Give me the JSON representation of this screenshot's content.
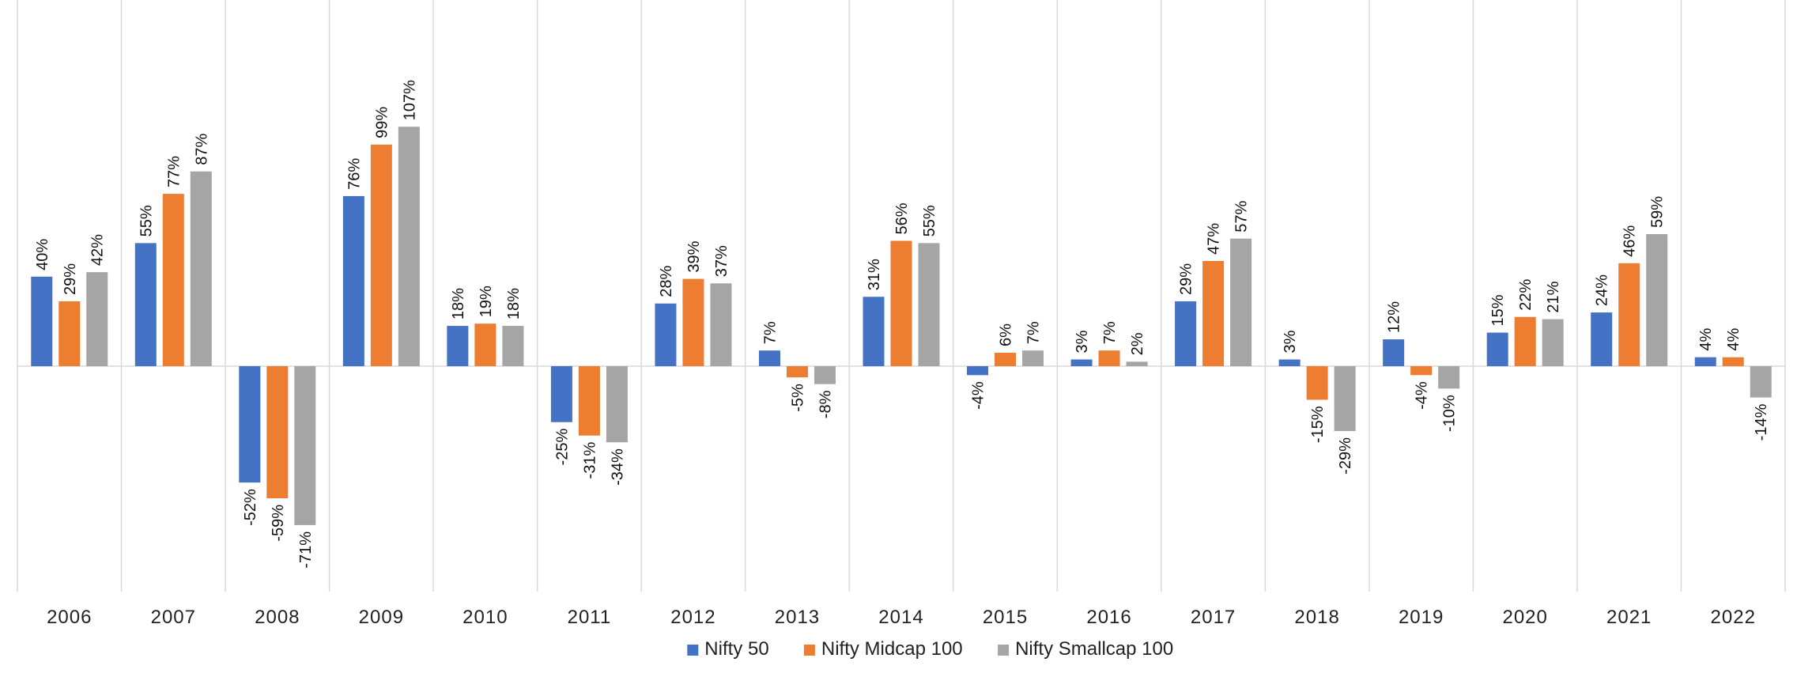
{
  "chart_data": {
    "type": "bar",
    "title": "",
    "xlabel": "",
    "ylabel": "",
    "ylim": [
      -75,
      110
    ],
    "grid": "vertical separators between categories",
    "legend_position": "bottom",
    "categories": [
      "2006",
      "2007",
      "2008",
      "2009",
      "2010",
      "2011",
      "2012",
      "2013",
      "2014",
      "2015",
      "2016",
      "2017",
      "2018",
      "2019",
      "2020",
      "2021",
      "2022"
    ],
    "series": [
      {
        "name": "Nifty 50",
        "color": "#4472C4",
        "values": [
          40,
          55,
          -52,
          76,
          18,
          -25,
          28,
          7,
          31,
          -4,
          3,
          29,
          3,
          12,
          15,
          24,
          4
        ],
        "labels": [
          "40%",
          "55%",
          "-52%",
          "76%",
          "18%",
          "-25%",
          "28%",
          "7%",
          "31%",
          "-4%",
          "3%",
          "29%",
          "3%",
          "12%",
          "15%",
          "24%",
          "4%"
        ]
      },
      {
        "name": "Nifty Midcap 100",
        "color": "#ED7D31",
        "values": [
          29,
          77,
          -59,
          99,
          19,
          -31,
          39,
          -5,
          56,
          6,
          7,
          47,
          -15,
          -4,
          22,
          46,
          4
        ],
        "labels": [
          "29%",
          "77%",
          "-59%",
          "99%",
          "19%",
          "-31%",
          "39%",
          "-5%",
          "56%",
          "6%",
          "7%",
          "47%",
          "-15%",
          "-4%",
          "22%",
          "46%",
          "4%"
        ]
      },
      {
        "name": "Nifty Smallcap 100",
        "color": "#A5A5A5",
        "values": [
          42,
          87,
          -71,
          107,
          18,
          -34,
          37,
          -8,
          55,
          7,
          2,
          57,
          -29,
          -10,
          21,
          59,
          -14
        ],
        "labels": [
          "42%",
          "87%",
          "-71%",
          "107%",
          "18%",
          "-34%",
          "37%",
          "-8%",
          "55%",
          "7%",
          "2%",
          "57%",
          "-29%",
          "-10%",
          "21%",
          "59%",
          "-14%"
        ]
      }
    ]
  }
}
